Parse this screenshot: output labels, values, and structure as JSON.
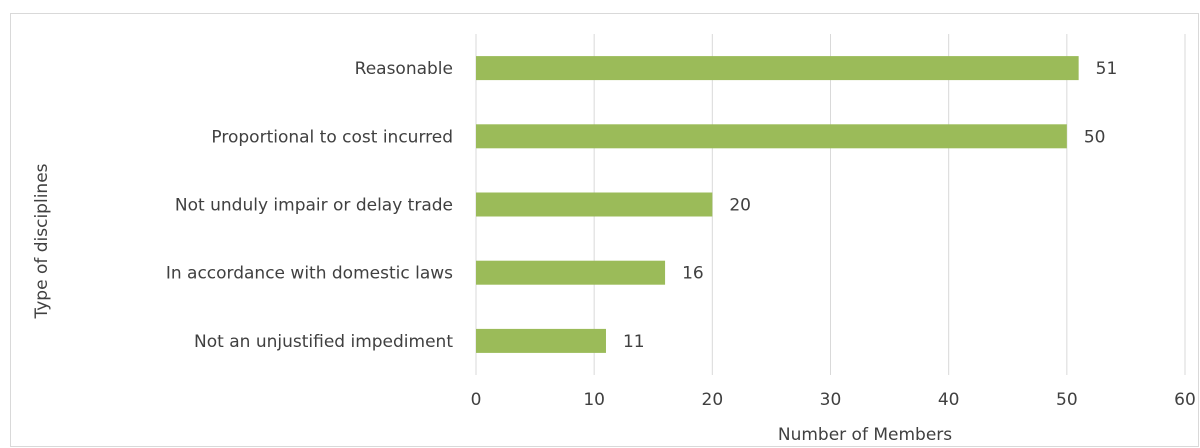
{
  "chart_data": {
    "type": "bar",
    "orientation": "horizontal",
    "categories": [
      "Reasonable",
      "Proportional to cost incurred",
      "Not unduly impair or delay trade",
      "In accordance with domestic laws",
      "Not an unjustified impediment"
    ],
    "values": [
      51,
      50,
      20,
      16,
      11
    ],
    "xlabel": "Number of Members",
    "ylabel": "Type of disciplines",
    "xlim": [
      0,
      60
    ],
    "xticks": [
      "0",
      "10",
      "20",
      "30",
      "40",
      "50",
      "60"
    ],
    "grid": "vertical",
    "legend": "none",
    "bar_color": "#9bbb59",
    "data_labels": true
  }
}
